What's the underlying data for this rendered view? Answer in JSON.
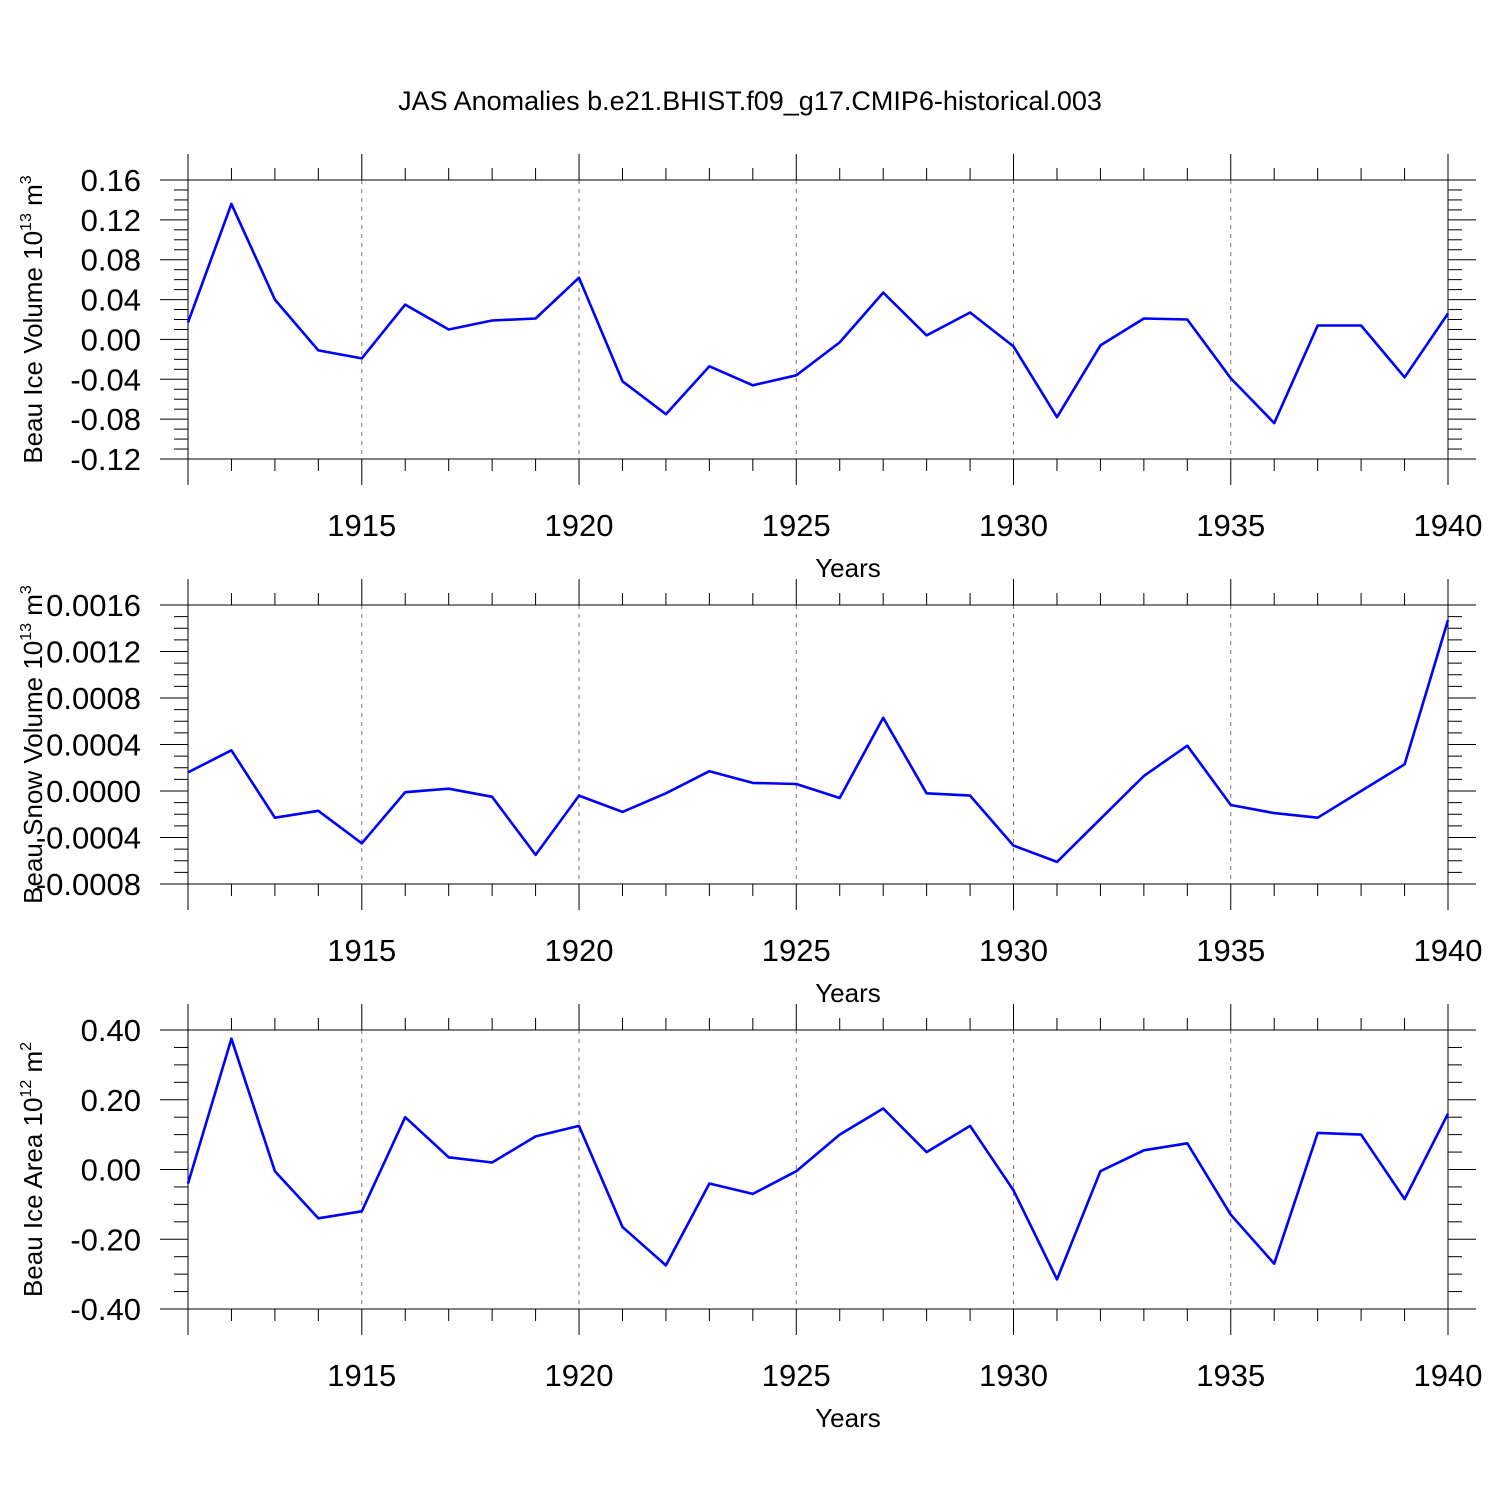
{
  "figure_title": "JAS Anomalies b.e21.BHIST.f09_g17.CMIP6-historical.003",
  "colors": {
    "line": "#0000ff",
    "axis": "#000000",
    "grid": "#777777"
  },
  "chart_data": [
    {
      "type": "line",
      "title": "",
      "xlabel": "Years",
      "ylabel": {
        "text": "Beau Ice Volume 10",
        "sup": "13",
        "unit": " m",
        "unit_sup": "3"
      },
      "x": [
        1911,
        1912,
        1913,
        1914,
        1915,
        1916,
        1917,
        1918,
        1919,
        1920,
        1921,
        1922,
        1923,
        1924,
        1925,
        1926,
        1927,
        1928,
        1929,
        1930,
        1931,
        1932,
        1933,
        1934,
        1935,
        1936,
        1937,
        1938,
        1939,
        1940
      ],
      "series": [
        {
          "name": "Beau Ice Volume",
          "values": [
            0.017,
            0.136,
            0.04,
            -0.011,
            -0.019,
            0.035,
            0.01,
            0.019,
            0.021,
            0.062,
            -0.042,
            -0.075,
            -0.027,
            -0.046,
            -0.036,
            -0.003,
            0.047,
            0.004,
            0.027,
            -0.007,
            -0.078,
            -0.006,
            0.021,
            0.02,
            -0.039,
            -0.084,
            0.014,
            0.014,
            -0.038,
            0.026
          ]
        }
      ],
      "xlim": [
        1911,
        1940
      ],
      "ylim": [
        -0.12,
        0.16
      ],
      "yticks": [
        0.16,
        0.12,
        0.08,
        0.04,
        0.0,
        -0.04,
        -0.08,
        -0.12
      ],
      "ytick_labels": [
        "0.16",
        "0.12",
        "0.08",
        "0.04",
        "0.00",
        "-0.04",
        "-0.08",
        "-0.12"
      ],
      "xticks": [
        1915,
        1920,
        1925,
        1930,
        1935,
        1940
      ],
      "xtick_labels": [
        "1915",
        "1920",
        "1925",
        "1930",
        "1935",
        "1940"
      ]
    },
    {
      "type": "line",
      "title": "",
      "xlabel": "Years",
      "ylabel": {
        "text": "Beau Snow Volume 10",
        "sup": "13",
        "unit": " m",
        "unit_sup": "3"
      },
      "x": [
        1911,
        1912,
        1913,
        1914,
        1915,
        1916,
        1917,
        1918,
        1919,
        1920,
        1921,
        1922,
        1923,
        1924,
        1925,
        1926,
        1927,
        1928,
        1929,
        1930,
        1931,
        1932,
        1933,
        1934,
        1935,
        1936,
        1937,
        1938,
        1939,
        1940
      ],
      "series": [
        {
          "name": "Beau Snow Volume",
          "values": [
            0.00016,
            0.00035,
            -0.00023,
            -0.00017,
            -0.00045,
            -1e-05,
            2e-05,
            -5e-05,
            -0.00055,
            -4e-05,
            -0.00018,
            -2e-05,
            0.00017,
            7e-05,
            6e-05,
            -6e-05,
            0.00063,
            -2e-05,
            -4e-05,
            -0.00047,
            -0.00061,
            -0.00024,
            0.00013,
            0.00039,
            -0.00012,
            -0.00019,
            -0.00023,
            0.0,
            0.00023,
            0.00147
          ]
        }
      ],
      "xlim": [
        1911,
        1940
      ],
      "ylim": [
        -0.0008,
        0.0016
      ],
      "yticks": [
        0.0016,
        0.0012,
        0.0008,
        0.0004,
        0.0,
        -0.0004,
        -0.0008
      ],
      "ytick_labels": [
        "0.0016",
        "0.0012",
        "0.0008",
        "0.0004",
        "0.0000",
        "-0.0004",
        "-0.0008"
      ],
      "xticks": [
        1915,
        1920,
        1925,
        1930,
        1935,
        1940
      ],
      "xtick_labels": [
        "1915",
        "1920",
        "1925",
        "1930",
        "1935",
        "1940"
      ]
    },
    {
      "type": "line",
      "title": "",
      "xlabel": "Years",
      "ylabel": {
        "text": "Beau Ice Area 10",
        "sup": "12",
        "unit": " m",
        "unit_sup": "2"
      },
      "x": [
        1911,
        1912,
        1913,
        1914,
        1915,
        1916,
        1917,
        1918,
        1919,
        1920,
        1921,
        1922,
        1923,
        1924,
        1925,
        1926,
        1927,
        1928,
        1929,
        1930,
        1931,
        1932,
        1933,
        1934,
        1935,
        1936,
        1937,
        1938,
        1939,
        1940
      ],
      "series": [
        {
          "name": "Beau Ice Area",
          "values": [
            -0.04,
            0.375,
            -0.005,
            -0.14,
            -0.12,
            0.15,
            0.035,
            0.02,
            0.095,
            0.125,
            -0.165,
            -0.275,
            -0.04,
            -0.07,
            -0.005,
            0.1,
            0.175,
            0.05,
            0.125,
            -0.06,
            -0.315,
            -0.005,
            0.055,
            0.075,
            -0.13,
            -0.27,
            0.105,
            0.1,
            -0.085,
            0.16
          ]
        }
      ],
      "xlim": [
        1911,
        1940
      ],
      "ylim": [
        -0.4,
        0.4
      ],
      "yticks": [
        0.4,
        0.2,
        0.0,
        -0.2,
        -0.4
      ],
      "ytick_labels": [
        "0.40",
        "0.20",
        "0.00",
        "-0.20",
        "-0.40"
      ],
      "xticks": [
        1915,
        1920,
        1925,
        1930,
        1935,
        1940
      ],
      "xtick_labels": [
        "1915",
        "1920",
        "1925",
        "1930",
        "1935",
        "1940"
      ]
    }
  ]
}
